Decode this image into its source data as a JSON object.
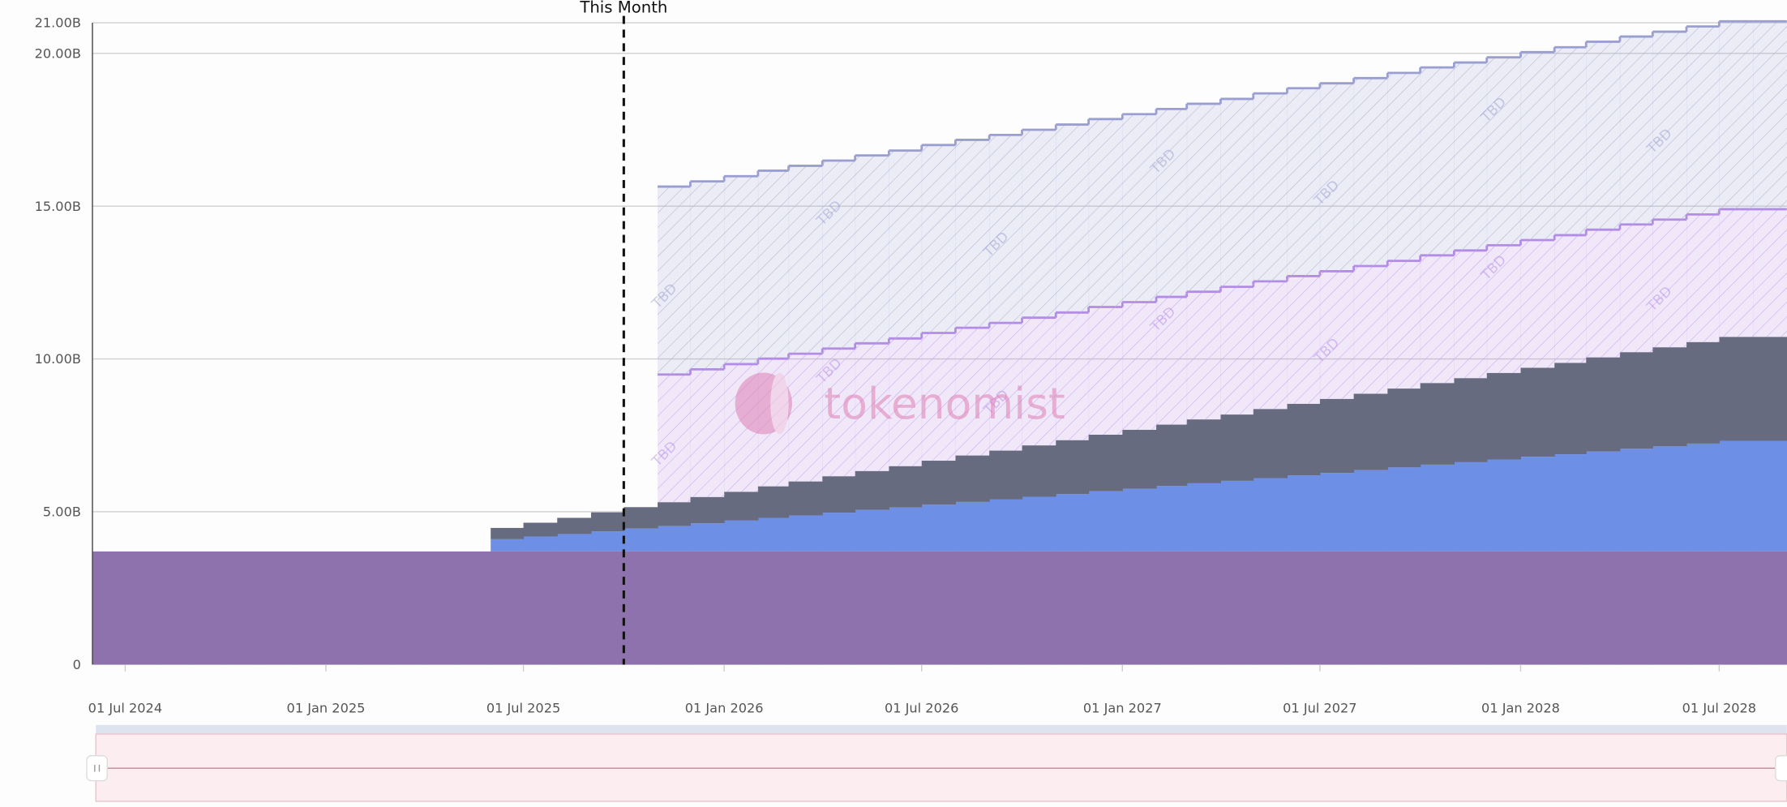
{
  "chart_data": {
    "type": "step-area",
    "x": [
      "2024-06-01",
      "2024-07-01",
      "2024-08-01",
      "2024-09-01",
      "2024-10-01",
      "2024-11-01",
      "2024-12-01",
      "2025-01-01",
      "2025-02-01",
      "2025-03-01",
      "2025-04-01",
      "2025-05-01",
      "2025-06-01",
      "2025-07-01",
      "2025-08-01",
      "2025-09-01",
      "2025-10-01",
      "2025-11-01",
      "2025-12-01",
      "2026-01-01",
      "2026-02-01",
      "2026-03-01",
      "2026-04-01",
      "2026-05-01",
      "2026-06-01",
      "2026-07-01",
      "2026-08-01",
      "2026-09-01",
      "2026-10-01",
      "2026-11-01",
      "2026-12-01",
      "2027-01-01",
      "2027-02-01",
      "2027-03-01",
      "2027-04-01",
      "2027-05-01",
      "2027-06-01",
      "2027-07-01",
      "2027-08-01",
      "2027-09-01",
      "2027-10-01",
      "2027-11-01",
      "2027-12-01",
      "2028-01-01",
      "2028-02-01",
      "2028-03-01",
      "2028-04-01",
      "2028-05-01",
      "2028-06-01",
      "2028-07-01",
      "2028-08-01"
    ],
    "xlim": [
      "2024-06-01",
      "2028-09-01"
    ],
    "xticks": [
      {
        "value": "2024-07-01",
        "label": "01 Jul 2024"
      },
      {
        "value": "2025-01-01",
        "label": "01 Jan 2025"
      },
      {
        "value": "2025-07-01",
        "label": "01 Jul 2025"
      },
      {
        "value": "2026-01-01",
        "label": "01 Jan 2026"
      },
      {
        "value": "2026-07-01",
        "label": "01 Jul 2026"
      },
      {
        "value": "2027-01-01",
        "label": "01 Jan 2027"
      },
      {
        "value": "2027-07-01",
        "label": "01 Jul 2027"
      },
      {
        "value": "2028-01-01",
        "label": "01 Jan 2028"
      },
      {
        "value": "2028-07-01",
        "label": "01 Jul 2028"
      }
    ],
    "ylim": [
      0,
      21
    ],
    "yticks": [
      0,
      {
        "value": 5,
        "label": "5.00B"
      },
      {
        "value": 10,
        "label": "10.00B"
      },
      {
        "value": 15,
        "label": "15.00B"
      },
      {
        "value": 20,
        "label": "20.00B"
      },
      {
        "value": 21,
        "label": "21.00B"
      }
    ],
    "grid": true,
    "stacked": true,
    "series": [
      {
        "color": "#8e72ad",
        "values": [
          3.7,
          3.7,
          3.7,
          3.7,
          3.7,
          3.7,
          3.7,
          3.7,
          3.7,
          3.7,
          3.7,
          3.7,
          3.7,
          3.7,
          3.7,
          3.7,
          3.7,
          3.7,
          3.7,
          3.7,
          3.7,
          3.7,
          3.7,
          3.7,
          3.7,
          3.7,
          3.7,
          3.7,
          3.7,
          3.7,
          3.7,
          3.7,
          3.7,
          3.7,
          3.7,
          3.7,
          3.7,
          3.7,
          3.7,
          3.7,
          3.7,
          3.7,
          3.7,
          3.7,
          3.7,
          3.7,
          3.7,
          3.7,
          3.7,
          3.7,
          3.7
        ]
      },
      {
        "color": "#6e8fe6",
        "values": [
          null,
          null,
          null,
          null,
          null,
          null,
          null,
          null,
          null,
          null,
          null,
          null,
          0.4,
          0.49,
          0.57,
          0.66,
          0.75,
          0.83,
          0.92,
          1.01,
          1.1,
          1.18,
          1.27,
          1.36,
          1.44,
          1.53,
          1.62,
          1.7,
          1.79,
          1.88,
          1.97,
          2.05,
          2.14,
          2.23,
          2.31,
          2.4,
          2.49,
          2.57,
          2.66,
          2.75,
          2.84,
          2.92,
          3.01,
          3.1,
          3.18,
          3.27,
          3.36,
          3.44,
          3.53,
          3.62,
          3.62
        ]
      },
      {
        "color": "#666b80",
        "values": [
          null,
          null,
          null,
          null,
          null,
          null,
          null,
          null,
          null,
          null,
          null,
          null,
          0.37,
          0.45,
          0.53,
          0.62,
          0.7,
          0.78,
          0.86,
          0.94,
          1.03,
          1.11,
          1.19,
          1.27,
          1.35,
          1.44,
          1.52,
          1.6,
          1.68,
          1.76,
          1.85,
          1.93,
          2.01,
          2.09,
          2.17,
          2.26,
          2.34,
          2.42,
          2.5,
          2.58,
          2.67,
          2.75,
          2.83,
          2.91,
          2.99,
          3.08,
          3.16,
          3.24,
          3.32,
          3.4,
          3.4
        ]
      },
      {
        "color": "#b68ae8",
        "hatched": true,
        "values": [
          null,
          null,
          null,
          null,
          null,
          null,
          null,
          null,
          null,
          null,
          null,
          null,
          null,
          null,
          null,
          null,
          null,
          4.18,
          4.18,
          4.18,
          4.18,
          4.18,
          4.18,
          4.18,
          4.18,
          4.18,
          4.18,
          4.18,
          4.18,
          4.18,
          4.18,
          4.18,
          4.18,
          4.18,
          4.18,
          4.18,
          4.18,
          4.18,
          4.18,
          4.18,
          4.18,
          4.18,
          4.18,
          4.18,
          4.18,
          4.18,
          4.18,
          4.18,
          4.18,
          4.18,
          4.18
        ]
      },
      {
        "color": "#9a9ed0",
        "hatched": true,
        "values": [
          null,
          null,
          null,
          null,
          null,
          null,
          null,
          null,
          null,
          null,
          null,
          null,
          null,
          null,
          null,
          null,
          null,
          6.15,
          6.15,
          6.15,
          6.15,
          6.15,
          6.15,
          6.15,
          6.15,
          6.15,
          6.15,
          6.15,
          6.15,
          6.15,
          6.15,
          6.15,
          6.15,
          6.15,
          6.15,
          6.15,
          6.15,
          6.15,
          6.15,
          6.15,
          6.15,
          6.15,
          6.15,
          6.15,
          6.15,
          6.15,
          6.15,
          6.15,
          6.15,
          6.15,
          6.15
        ]
      }
    ],
    "tbd_label": "TBD",
    "annotation": {
      "label": "This Month",
      "x": "2025-10-01"
    },
    "watermark": "tokenomist"
  }
}
